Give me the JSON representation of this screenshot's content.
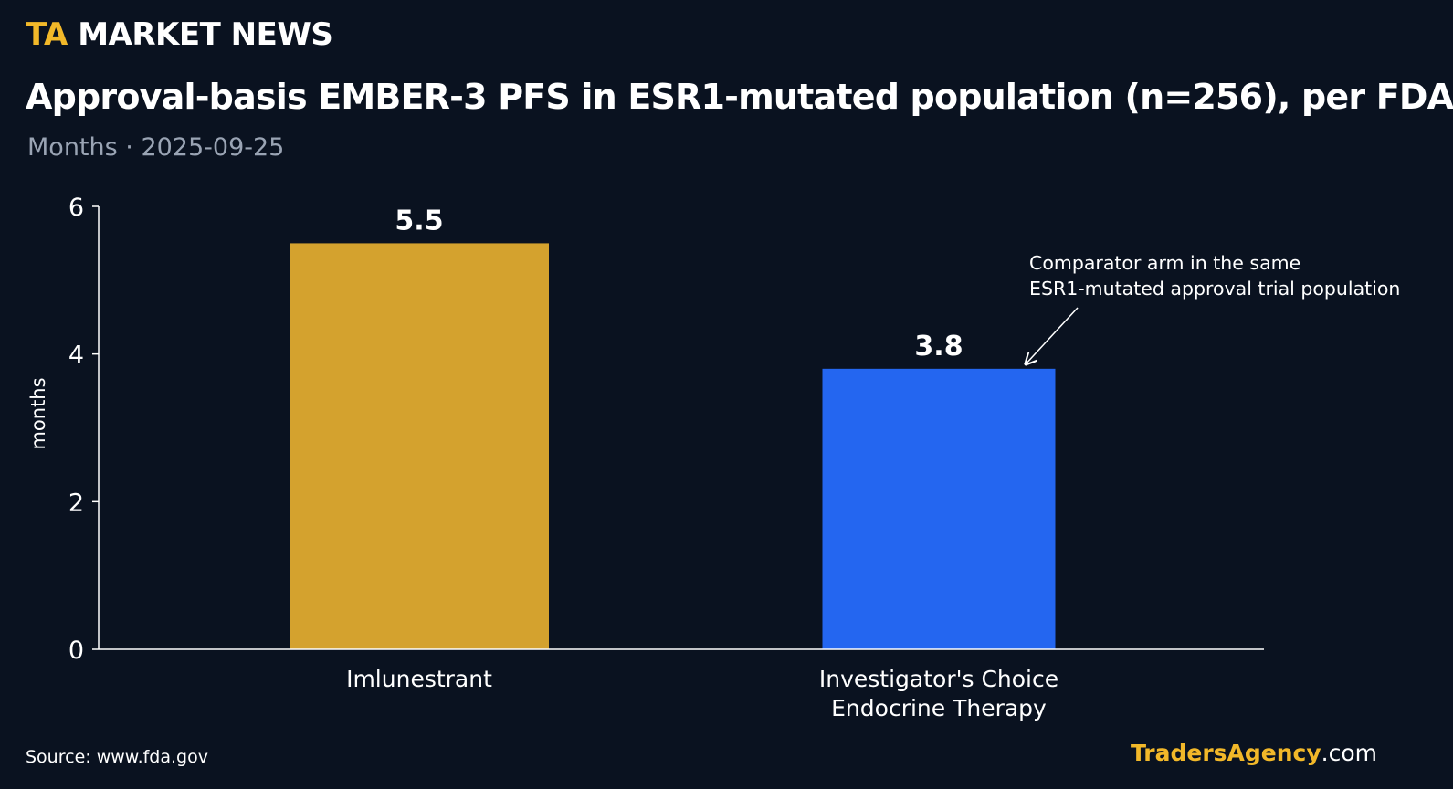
{
  "header": {
    "brand_prefix": "TA",
    "brand_name": "MARKET NEWS",
    "title": "Approval-basis EMBER-3 PFS in ESR1-mutated population (n=256), per FDA",
    "subtitle": "Months · 2025-09-25"
  },
  "footer": {
    "source": "Source: www.fda.gov",
    "site_brand": "TradersAgency",
    "site_domain": ".com"
  },
  "colors": {
    "background": "#0a1220",
    "brand_accent": "#f2b829",
    "imlunestrant_bar": "#d4a22e",
    "comparator_bar": "#2466f0",
    "axis": "#ffffff",
    "subtitle": "#9aa4b4"
  },
  "chart_data": {
    "type": "bar",
    "categories": [
      "Imlunestrant",
      "Investigator's Choice\nEndocrine Therapy"
    ],
    "values": [
      5.5,
      3.8
    ],
    "value_labels": [
      "5.5",
      "3.8"
    ],
    "bar_colors": [
      "#d4a22e",
      "#2466f0"
    ],
    "ylabel": "months",
    "xlabel": "",
    "ylim": [
      0,
      6
    ],
    "yticks": [
      0,
      2,
      4,
      6
    ],
    "grid": false,
    "annotation": {
      "text": [
        "Comparator arm in the same",
        "ESR1-mutated approval trial population"
      ],
      "target_category_index": 1
    }
  }
}
